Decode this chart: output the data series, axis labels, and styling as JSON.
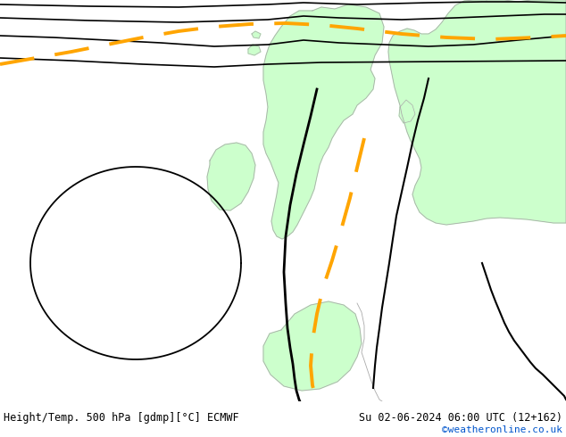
{
  "title_left": "Height/Temp. 500 hPa [gdmp][°C] ECMWF",
  "title_right": "Su 02-06-2024 06:00 UTC (12+162)",
  "credit": "©weatheronline.co.uk",
  "bg_color": "#e8e8e8",
  "land_color": "#ccffcc",
  "coast_color": "#aaaaaa",
  "contour_color": "#000000",
  "temp_contour_color": "#FFA500",
  "fig_width": 6.34,
  "fig_height": 4.9,
  "dpi": 100,
  "white_strip_color": "#ffffff"
}
